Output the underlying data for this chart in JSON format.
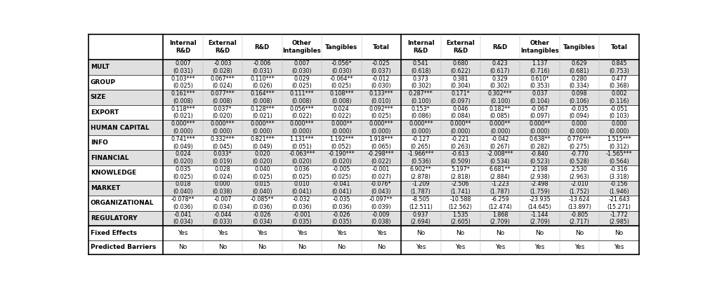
{
  "col_headers": [
    "Internal\nR&D",
    "External\nR&D",
    "R&D",
    "Other\nIntangibles",
    "Tangibles",
    "Total",
    "Internal\nR&D",
    "External\nR&D",
    "R&D",
    "Other\nIntangibles",
    "Tangibles",
    "Total"
  ],
  "rows": [
    [
      "0.007",
      "-0.003",
      "-0.006",
      "0.007",
      "-0.056*",
      "-0.025",
      "0.541",
      "0.680",
      "0.423",
      "1.137",
      "0.629",
      "0.845"
    ],
    [
      "(0.031)",
      "(0.028)",
      "(0.031)",
      "(0.030)",
      "(0.030)",
      "(0.037)",
      "(0.618)",
      "(0.622)",
      "(0.617)",
      "(0.716)",
      "(0.681)",
      "(0.753)"
    ],
    [
      "0.103***",
      "0.067***",
      "0.110***",
      "0.029",
      "-0.064**",
      "-0.012",
      "0.373",
      "0.381",
      "0.329",
      "0.610*",
      "0.280",
      "0.477"
    ],
    [
      "(0.025)",
      "(0.024)",
      "(0.026)",
      "(0.025)",
      "(0.025)",
      "(0.030)",
      "(0.302)",
      "(0.304)",
      "(0.302)",
      "(0.353)",
      "(0.334)",
      "(0.368)"
    ],
    [
      "0.161***",
      "0.077***",
      "0.164***",
      "0.111***",
      "0.108***",
      "0.133***",
      "0.287***",
      "0.171*",
      "0.302***",
      "0.037",
      "0.098",
      "0.002"
    ],
    [
      "(0.008)",
      "(0.008)",
      "(0.008)",
      "(0.008)",
      "(0.008)",
      "(0.010)",
      "(0.100)",
      "(0.097)",
      "(0.100)",
      "(0.104)",
      "(0.106)",
      "(0.116)"
    ],
    [
      "0.118***",
      "0.037*",
      "0.128***",
      "0.056***",
      "0.024",
      "0.092***",
      "0.153*",
      "0.046",
      "0.182**",
      "-0.067",
      "-0.035",
      "-0.051"
    ],
    [
      "(0.021)",
      "(0.020)",
      "(0.021)",
      "(0.022)",
      "(0.022)",
      "(0.025)",
      "(0.086)",
      "(0.084)",
      "(0.085)",
      "(0.097)",
      "(0.094)",
      "(0.103)"
    ],
    [
      "0.000***",
      "0.000***",
      "0.000***",
      "0.000***",
      "0.000**",
      "0.000***",
      "0.000***",
      "0.000**",
      "0.000**",
      "0.000**",
      "0.000",
      "0.000"
    ],
    [
      "(0.000)",
      "(0.000)",
      "(0.000)",
      "(0.000)",
      "(0.000)",
      "(0.000)",
      "(0.000)",
      "(0.000)",
      "(0.000)",
      "(0.000)",
      "(0.000)",
      "(0.000)"
    ],
    [
      "0.741***",
      "0.332***",
      "0.821***",
      "1.131***",
      "1.192***",
      "1.918***",
      "-0.127",
      "-0.221",
      "-0.042",
      "0.638**",
      "0.776***",
      "1.515***"
    ],
    [
      "(0.049)",
      "(0.045)",
      "(0.049)",
      "(0.051)",
      "(0.052)",
      "(0.065)",
      "(0.265)",
      "(0.263)",
      "(0.267)",
      "(0.282)",
      "(0.275)",
      "(0.312)"
    ],
    [
      "0.024",
      "0.033*",
      "0.020",
      "-0.063***",
      "-0.190***",
      "-0.298***",
      "-1.966***",
      "-0.613",
      "-2.008***",
      "-0.840",
      "-0.770",
      "-1.565***"
    ],
    [
      "(0.020)",
      "(0.019)",
      "(0.020)",
      "(0.020)",
      "(0.020)",
      "(0.022)",
      "(0.536)",
      "(0.509)",
      "(0.534)",
      "(0.523)",
      "(0.528)",
      "(0.564)"
    ],
    [
      "0.035",
      "0.028",
      "0.040",
      "0.036",
      "-0.005",
      "-0.001",
      "6.902**",
      "5.197*",
      "6.681**",
      "2.198",
      "2.530",
      "-0.316"
    ],
    [
      "(0.025)",
      "(0.024)",
      "(0.025)",
      "(0.025)",
      "(0.025)",
      "(0.027)",
      "(2.878)",
      "(2.818)",
      "(2.884)",
      "(2.938)",
      "(2.963)",
      "(3.318)"
    ],
    [
      "0.018",
      "0.000",
      "0.015",
      "0.010",
      "-0.041",
      "-0.076*",
      "-1.209",
      "-2.506",
      "-1.223",
      "-2.498",
      "-2.010",
      "-0.156"
    ],
    [
      "(0.040)",
      "(0.038)",
      "(0.040)",
      "(0.041)",
      "(0.041)",
      "(0.043)",
      "(1.787)",
      "(1.741)",
      "(1.787)",
      "(1.759)",
      "(1.752)",
      "(1.946)"
    ],
    [
      "-0.078**",
      "-0.007",
      "-0.085**",
      "-0.032",
      "-0.035",
      "-0.097**",
      "-8.505",
      "-10.588",
      "-6.259",
      "-23.935",
      "-13.624",
      "-21.643"
    ],
    [
      "(0.036)",
      "(0.034)",
      "(0.036)",
      "(0.036)",
      "(0.036)",
      "(0.039)",
      "(12.511)",
      "(12.562)",
      "(12.474)",
      "(14.645)",
      "(13.897)",
      "(15.271)"
    ],
    [
      "-0.041",
      "-0.044",
      "-0.026",
      "-0.001",
      "-0.026",
      "-0.009",
      "0.937",
      "1.535",
      "1.868",
      "-1.144",
      "-0.805",
      "-1.772"
    ],
    [
      "(0.034)",
      "(0.033)",
      "(0.034)",
      "(0.035)",
      "(0.035)",
      "(0.038)",
      "(2.694)",
      "(2.605)",
      "(2.709)",
      "(2.709)",
      "(2.717)",
      "(2.985)"
    ],
    [
      "Yes",
      "Yes",
      "Yes",
      "Yes",
      "Yes",
      "Yes",
      "No",
      "No",
      "No",
      "No",
      "No",
      "No"
    ],
    [
      "No",
      "No",
      "No",
      "No",
      "No",
      "No",
      "Yes",
      "Yes",
      "Yes",
      "Yes",
      "Yes",
      "Yes"
    ]
  ],
  "row_groups": [
    {
      "label": "MULT",
      "data_rows": [
        0,
        1
      ]
    },
    {
      "label": "GROUP",
      "data_rows": [
        2,
        3
      ]
    },
    {
      "label": "SIZE",
      "data_rows": [
        4,
        5
      ]
    },
    {
      "label": "EXPORT",
      "data_rows": [
        6,
        7
      ]
    },
    {
      "label": "HUMAN CAPITAL",
      "data_rows": [
        8,
        9
      ]
    },
    {
      "label": "INFO",
      "data_rows": [
        10,
        11
      ]
    },
    {
      "label": "FINANCIAL",
      "data_rows": [
        12,
        13
      ]
    },
    {
      "label": "KNOWLEDGE",
      "data_rows": [
        14,
        15
      ]
    },
    {
      "label": "MARKET",
      "data_rows": [
        16,
        17
      ]
    },
    {
      "label": "ORGANIZATIONAL",
      "data_rows": [
        18,
        19
      ]
    },
    {
      "label": "REGULATORY",
      "data_rows": [
        20,
        21
      ]
    }
  ],
  "footer_rows": [
    {
      "label": "Fixed Effects",
      "row_idx": 22
    },
    {
      "label": "Predicted Barriers",
      "row_idx": 23
    }
  ],
  "bg_color_light": "#e0e0e0",
  "bg_color_white": "#ffffff",
  "line_color": "#000000"
}
